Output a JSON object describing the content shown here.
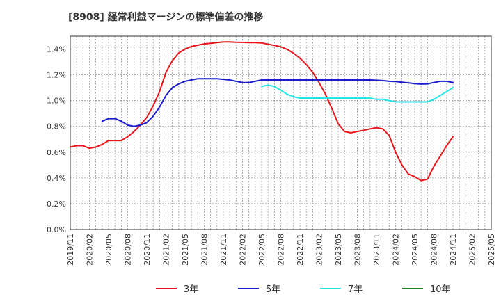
{
  "chart_data": {
    "type": "line",
    "title": "[8908]  経常利益マージンの標準偏差の推移",
    "xlabel": "",
    "ylabel": "",
    "ylim": [
      0,
      0.015
    ],
    "yticks": [
      0,
      0.002,
      0.004,
      0.006,
      0.008,
      0.01,
      0.012,
      0.014
    ],
    "yticklabels": [
      "0.0%",
      "0.2%",
      "0.4%",
      "0.6%",
      "0.8%",
      "1.0%",
      "1.2%",
      "1.4%"
    ],
    "xrange": [
      "2019/11",
      "2025/05"
    ],
    "xticklabels": [
      "2019/11",
      "2020/02",
      "2020/05",
      "2020/08",
      "2020/11",
      "2021/02",
      "2021/05",
      "2021/08",
      "2021/11",
      "2022/02",
      "2022/05",
      "2022/08",
      "2022/11",
      "2023/02",
      "2023/05",
      "2023/08",
      "2023/11",
      "2024/02",
      "2024/05",
      "2024/08",
      "2024/11",
      "2025/02",
      "2025/05"
    ],
    "grid": true,
    "legend_position": "bottom",
    "series": [
      {
        "name": "3年",
        "color": "#e8141c",
        "x": [
          "2019/11",
          "2019/12",
          "2020/01",
          "2020/02",
          "2020/03",
          "2020/04",
          "2020/05",
          "2020/06",
          "2020/07",
          "2020/08",
          "2020/09",
          "2020/10",
          "2020/11",
          "2020/12",
          "2021/01",
          "2021/02",
          "2021/03",
          "2021/04",
          "2021/05",
          "2021/06",
          "2021/07",
          "2021/08",
          "2021/09",
          "2021/10",
          "2021/11",
          "2021/12",
          "2022/01",
          "2022/02",
          "2022/03",
          "2022/04",
          "2022/05",
          "2022/06",
          "2022/07",
          "2022/08",
          "2022/09",
          "2022/10",
          "2022/11",
          "2022/12",
          "2023/01",
          "2023/02",
          "2023/03",
          "2023/04",
          "2023/05",
          "2023/06",
          "2023/07",
          "2023/08",
          "2023/09",
          "2023/10",
          "2023/11",
          "2023/12",
          "2024/01",
          "2024/02",
          "2024/03",
          "2024/04",
          "2024/05",
          "2024/06",
          "2024/07",
          "2024/08",
          "2024/09",
          "2024/10",
          "2024/11"
        ],
        "values": [
          0.0064,
          0.0065,
          0.0065,
          0.0063,
          0.0064,
          0.0066,
          0.0069,
          0.0069,
          0.0069,
          0.0072,
          0.0076,
          0.0081,
          0.0087,
          0.0096,
          0.0107,
          0.0122,
          0.0131,
          0.0137,
          0.014,
          0.0142,
          0.0143,
          0.0144,
          0.01445,
          0.0145,
          0.01455,
          0.01455,
          0.01453,
          0.01452,
          0.0145,
          0.0145,
          0.01447,
          0.01438,
          0.01428,
          0.01418,
          0.01398,
          0.01368,
          0.0133,
          0.0128,
          0.0122,
          0.0114,
          0.0105,
          0.0094,
          0.0082,
          0.0076,
          0.0075,
          0.0076,
          0.0077,
          0.0078,
          0.0079,
          0.0078,
          0.0073,
          0.006,
          0.005,
          0.0043,
          0.0041,
          0.0038,
          0.0039,
          0.0049,
          0.0057,
          0.0065,
          0.0072
        ]
      },
      {
        "name": "5年",
        "color": "#1c1ccf",
        "x": [
          "2020/04",
          "2020/05",
          "2020/06",
          "2020/07",
          "2020/08",
          "2020/09",
          "2020/10",
          "2020/11",
          "2020/12",
          "2021/01",
          "2021/02",
          "2021/03",
          "2021/04",
          "2021/05",
          "2021/06",
          "2021/07",
          "2021/08",
          "2021/09",
          "2021/10",
          "2021/11",
          "2021/12",
          "2022/01",
          "2022/02",
          "2022/03",
          "2022/04",
          "2022/05",
          "2022/06",
          "2022/07",
          "2022/08",
          "2022/09",
          "2022/10",
          "2022/11",
          "2022/12",
          "2023/01",
          "2023/02",
          "2023/03",
          "2023/04",
          "2023/05",
          "2023/06",
          "2023/07",
          "2023/08",
          "2023/09",
          "2023/10",
          "2023/11",
          "2023/12",
          "2024/01",
          "2024/02",
          "2024/03",
          "2024/04",
          "2024/05",
          "2024/06",
          "2024/07",
          "2024/08",
          "2024/09",
          "2024/10",
          "2024/11"
        ],
        "values": [
          0.0084,
          0.0086,
          0.0086,
          0.0084,
          0.0081,
          0.008,
          0.0081,
          0.0083,
          0.0088,
          0.0095,
          0.0104,
          0.011,
          0.0113,
          0.0115,
          0.0116,
          0.0117,
          0.0117,
          0.0117,
          0.0117,
          0.01165,
          0.0116,
          0.0115,
          0.0114,
          0.0114,
          0.0115,
          0.0116,
          0.0116,
          0.0116,
          0.0116,
          0.0116,
          0.0116,
          0.0116,
          0.0116,
          0.0116,
          0.0116,
          0.0116,
          0.0116,
          0.0116,
          0.0116,
          0.0116,
          0.0116,
          0.0116,
          0.0116,
          0.01158,
          0.01155,
          0.0115,
          0.01148,
          0.01142,
          0.01138,
          0.01132,
          0.01128,
          0.0113,
          0.0114,
          0.0115,
          0.0115,
          0.0114
        ]
      },
      {
        "name": "7年",
        "color": "#22e6e6",
        "x": [
          "2022/05",
          "2022/06",
          "2022/07",
          "2022/08",
          "2022/09",
          "2022/10",
          "2022/11",
          "2022/12",
          "2023/01",
          "2023/02",
          "2023/03",
          "2023/04",
          "2023/05",
          "2023/06",
          "2023/07",
          "2023/08",
          "2023/09",
          "2023/10",
          "2023/11",
          "2023/12",
          "2024/01",
          "2024/02",
          "2024/03",
          "2024/04",
          "2024/05",
          "2024/06",
          "2024/07",
          "2024/08",
          "2024/09",
          "2024/10",
          "2024/11"
        ],
        "values": [
          0.0111,
          0.0112,
          0.0111,
          0.0108,
          0.0105,
          0.0103,
          0.0102,
          0.0102,
          0.0102,
          0.0102,
          0.0102,
          0.0102,
          0.0102,
          0.0102,
          0.0102,
          0.0102,
          0.0102,
          0.0102,
          0.0101,
          0.0101,
          0.01,
          0.0099,
          0.0099,
          0.0099,
          0.0099,
          0.0099,
          0.0099,
          0.0101,
          0.0104,
          0.0107,
          0.011
        ]
      },
      {
        "name": "10年",
        "color": "#1a8c1a",
        "x": [],
        "values": []
      }
    ]
  }
}
